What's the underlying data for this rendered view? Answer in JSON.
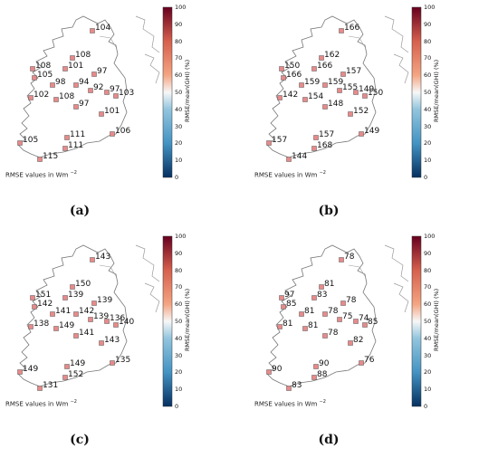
{
  "colorbar": {
    "label": "RMSE/mean(GHI) (%)",
    "ticks": [
      "100",
      "90",
      "80",
      "70",
      "60",
      "50",
      "40",
      "30",
      "20",
      "10",
      "0"
    ],
    "colors": {
      "high": "#67001f",
      "mid": "#f7f7f7",
      "low": "#053061"
    }
  },
  "note": {
    "text": "RMSE values in Wm",
    "unit_exp": "−2"
  },
  "panels": [
    {
      "caption": "(a)",
      "values": [
        "104",
        "108",
        "108",
        "101",
        "97",
        "105",
        "98",
        "94",
        "92",
        "97",
        "103",
        "102",
        "108",
        "97",
        "101",
        "106",
        "105",
        "111",
        "111",
        "115"
      ]
    },
    {
      "caption": "(b)",
      "values": [
        "166",
        "162",
        "150",
        "166",
        "157",
        "166",
        "159",
        "159",
        "155",
        "149",
        "150",
        "142",
        "154",
        "148",
        "152",
        "149",
        "157",
        "157",
        "168",
        "144"
      ]
    },
    {
      "caption": "(c)",
      "values": [
        "143",
        "150",
        "151",
        "139",
        "139",
        "142",
        "141",
        "142",
        "139",
        "136",
        "140",
        "138",
        "149",
        "141",
        "143",
        "135",
        "149",
        "149",
        "152",
        "131"
      ]
    },
    {
      "caption": "(d)",
      "values": [
        "78",
        "81",
        "97",
        "83",
        "78",
        "85",
        "81",
        "78",
        "75",
        "74",
        "85",
        "81",
        "81",
        "78",
        "82",
        "76",
        "90",
        "90",
        "88",
        "83"
      ]
    }
  ]
}
